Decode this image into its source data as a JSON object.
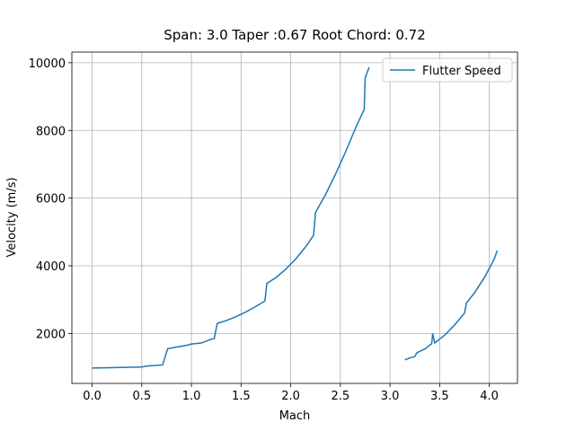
{
  "chart_data": {
    "type": "line",
    "title": "Span: 3.0 Taper :0.67 Root Chord: 0.72",
    "x_label": "Mach",
    "y_label": "Velocity (m/s)",
    "x": [
      0,
      0.5,
      0.55,
      0.71,
      0.76,
      0.85,
      0.95,
      1.0,
      1.1,
      1.2,
      1.23,
      1.26,
      1.35,
      1.45,
      1.55,
      1.65,
      1.74,
      1.76,
      1.85,
      1.95,
      2.05,
      2.15,
      2.23,
      2.25,
      2.35,
      2.45,
      2.55,
      2.65,
      2.72,
      2.74,
      2.75,
      2.79,
      null,
      3.15,
      3.2,
      3.25,
      3.27,
      3.35,
      3.42,
      3.43,
      3.45,
      3.55,
      3.65,
      3.75,
      3.77,
      3.85,
      3.95,
      4.05,
      4.08
    ],
    "series": [
      {
        "name": "Flutter Speed",
        "color": "#1f77b4",
        "values": [
          980,
          1010,
          1040,
          1070,
          1550,
          1600,
          1650,
          1690,
          1720,
          1830,
          1850,
          2300,
          2380,
          2500,
          2640,
          2800,
          2960,
          3480,
          3650,
          3900,
          4200,
          4560,
          4900,
          5580,
          6100,
          6700,
          7350,
          8050,
          8500,
          8620,
          9550,
          9870,
          null,
          1220,
          1280,
          1320,
          1430,
          1540,
          1700,
          2000,
          1720,
          1950,
          2250,
          2600,
          2900,
          3200,
          3650,
          4200,
          4450
        ]
      }
    ],
    "xlim": [
      -0.204,
      4.284
    ],
    "ylim": [
      525,
      10315
    ],
    "xticks": [
      {
        "value": 0,
        "label": "0.0"
      },
      0.5,
      {
        "value": 1,
        "label": "1.0"
      },
      1.5,
      {
        "value": 2,
        "label": "2.0"
      },
      2.5,
      {
        "value": 3,
        "label": "3.0"
      },
      3.5,
      {
        "value": 4,
        "label": "4.0"
      }
    ],
    "yticks": [
      2000,
      4000,
      6000,
      8000,
      10000
    ],
    "grid": true,
    "legend": "upper right"
  }
}
